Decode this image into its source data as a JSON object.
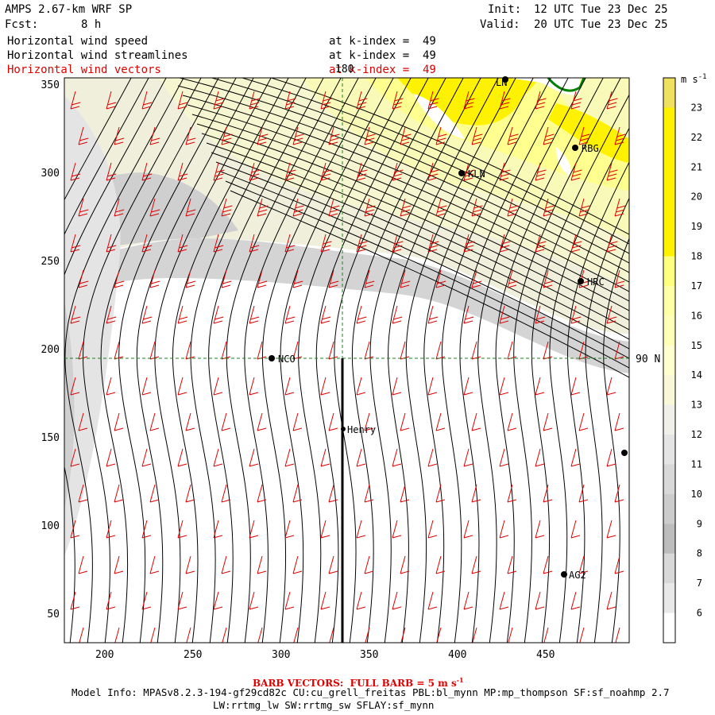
{
  "header": {
    "model_title": "AMPS 2.67-km WRF SP",
    "forecast_label": "Fcst:",
    "forecast_hours": "8 h",
    "init_label": "Init:",
    "init_time": "12 UTC Tue 23 Dec 25",
    "valid_label": "Valid:",
    "valid_time": "20 UTC Tue 23 Dec 25"
  },
  "layers": [
    {
      "name": "Horizontal wind speed",
      "level": "at k-index =  49",
      "color": "#000000"
    },
    {
      "name": "Horizontal wind streamlines",
      "level": "at k-index =  49",
      "color": "#000000"
    },
    {
      "name": "Horizontal wind vectors",
      "level": "at k-index =  49",
      "color": "#e00000"
    }
  ],
  "map": {
    "x_ticks": [
      "200",
      "250",
      "300",
      "350",
      "400",
      "450"
    ],
    "y_ticks": [
      "350",
      "300",
      "250",
      "200",
      "150",
      "100",
      "50"
    ],
    "grid_labels": {
      "meridian": "180",
      "parallel": "90 N"
    },
    "stations": [
      {
        "name": "NCO"
      },
      {
        "name": "Henry"
      },
      {
        "name": "KLN"
      },
      {
        "name": "RBG"
      },
      {
        "name": "HRC"
      },
      {
        "name": "AG2"
      },
      {
        "name": "LN"
      }
    ]
  },
  "colorbar": {
    "units": "m s",
    "units_exp": "-1",
    "levels": [
      "23",
      "22",
      "21",
      "20",
      "19",
      "18",
      "17",
      "16",
      "15",
      "14",
      "13",
      "12",
      "11",
      "10",
      "9",
      "8",
      "7",
      "6"
    ],
    "colors": [
      "#f0e060",
      "#fff200",
      "#fff200",
      "#fff200",
      "#fff200",
      "#fff200",
      "#ffff80",
      "#ffffa8",
      "#ffffb8",
      "#ffffd0",
      "#f8f8d8",
      "#f0f0e8",
      "#e4e4e4",
      "#d8d8d8",
      "#cccccc",
      "#bdbdbd",
      "#d8d8d8",
      "#e8e8e8",
      "#ffffff"
    ]
  },
  "footer": {
    "barb_note": "BARB VECTORS:  FULL BARB = 5 m s",
    "barb_note_exp": "-1",
    "model_info": "Model Info: MPASv8.2.3-194-gf29cd82c CU:cu_grell_freitas PBL:bl_mynn MP:mp_thompson SF:sf_noahmp 2.7",
    "model_info_2": "LW:rrtmg_lw SW:rrtmg_sw SFLAY:sf_mynn"
  },
  "colors": {
    "barb": "#e00000",
    "grid": "#208020",
    "coast": "#008000"
  }
}
